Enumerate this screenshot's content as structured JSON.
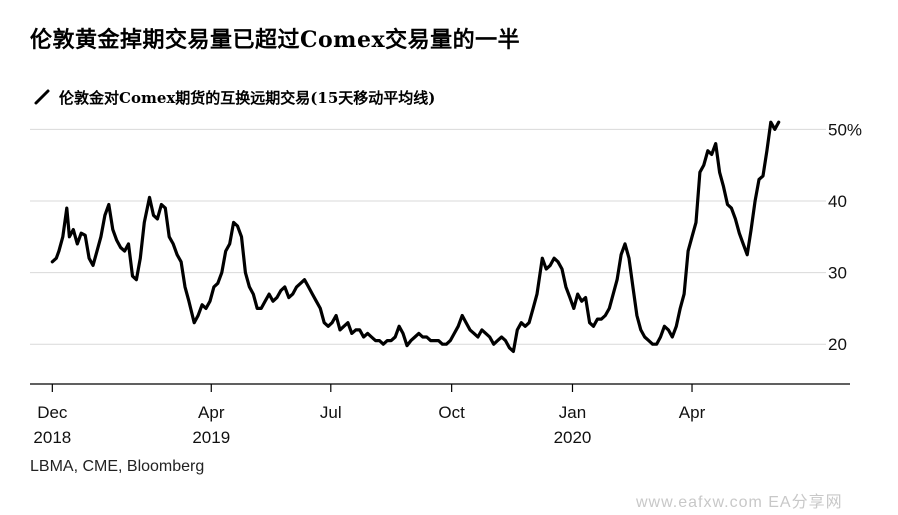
{
  "title": "伦敦黄金掉期交易量已超过Comex交易量的一半",
  "source": "LBMA, CME, Bloomberg",
  "watermark": "www.eafxw.com  EA分享网",
  "chart_data": {
    "type": "line",
    "legend": "伦敦金对Comex期货的互换远期交易(15天移动平均线)",
    "series_color": "#000000",
    "y_unit": "%",
    "ylim": [
      15,
      52
    ],
    "y_ticks": [
      {
        "value": 20,
        "label": "20"
      },
      {
        "value": 30,
        "label": "30"
      },
      {
        "value": 40,
        "label": "40"
      },
      {
        "value": 50,
        "label": "50%"
      }
    ],
    "x_ticks": [
      {
        "date": "2018-12-01",
        "label": "Dec",
        "year": "2018"
      },
      {
        "date": "2019-04-01",
        "label": "Apr",
        "year": "2019"
      },
      {
        "date": "2019-07-01",
        "label": "Jul",
        "year": ""
      },
      {
        "date": "2019-10-01",
        "label": "Oct",
        "year": ""
      },
      {
        "date": "2020-01-01",
        "label": "Jan",
        "year": "2020"
      },
      {
        "date": "2020-04-01",
        "label": "Apr",
        "year": ""
      }
    ],
    "xlim": [
      "2018-11-14",
      "2020-07-12"
    ],
    "points": [
      [
        "2018-12-01",
        31.5
      ],
      [
        "2018-12-04",
        32
      ],
      [
        "2018-12-06",
        33
      ],
      [
        "2018-12-09",
        35
      ],
      [
        "2018-12-12",
        39
      ],
      [
        "2018-12-14",
        35
      ],
      [
        "2018-12-17",
        36
      ],
      [
        "2018-12-20",
        34
      ],
      [
        "2018-12-23",
        35.5
      ],
      [
        "2018-12-26",
        35.2
      ],
      [
        "2018-12-29",
        32
      ],
      [
        "2019-01-01",
        31
      ],
      [
        "2019-01-04",
        33
      ],
      [
        "2019-01-07",
        35
      ],
      [
        "2019-01-10",
        38
      ],
      [
        "2019-01-13",
        39.5
      ],
      [
        "2019-01-16",
        36
      ],
      [
        "2019-01-19",
        34.5
      ],
      [
        "2019-01-22",
        33.5
      ],
      [
        "2019-01-25",
        33
      ],
      [
        "2019-01-28",
        34
      ],
      [
        "2019-01-31",
        29.5
      ],
      [
        "2019-02-03",
        29
      ],
      [
        "2019-02-06",
        32
      ],
      [
        "2019-02-09",
        37
      ],
      [
        "2019-02-13",
        40.5
      ],
      [
        "2019-02-16",
        38
      ],
      [
        "2019-02-19",
        37.5
      ],
      [
        "2019-02-22",
        39.5
      ],
      [
        "2019-02-25",
        39
      ],
      [
        "2019-02-28",
        35
      ],
      [
        "2019-03-03",
        34
      ],
      [
        "2019-03-06",
        32.5
      ],
      [
        "2019-03-09",
        31.5
      ],
      [
        "2019-03-12",
        28
      ],
      [
        "2019-03-15",
        26
      ],
      [
        "2019-03-19",
        23
      ],
      [
        "2019-03-22",
        24
      ],
      [
        "2019-03-25",
        25.5
      ],
      [
        "2019-03-28",
        25
      ],
      [
        "2019-03-31",
        26
      ],
      [
        "2019-04-03",
        28
      ],
      [
        "2019-04-06",
        28.5
      ],
      [
        "2019-04-09",
        30
      ],
      [
        "2019-04-12",
        33
      ],
      [
        "2019-04-15",
        34
      ],
      [
        "2019-04-18",
        37
      ],
      [
        "2019-04-21",
        36.5
      ],
      [
        "2019-04-24",
        35
      ],
      [
        "2019-04-27",
        30
      ],
      [
        "2019-04-30",
        28
      ],
      [
        "2019-05-03",
        27
      ],
      [
        "2019-05-06",
        25
      ],
      [
        "2019-05-09",
        25
      ],
      [
        "2019-05-12",
        26
      ],
      [
        "2019-05-15",
        27
      ],
      [
        "2019-05-18",
        26
      ],
      [
        "2019-05-21",
        26.5
      ],
      [
        "2019-05-24",
        27.5
      ],
      [
        "2019-05-27",
        28
      ],
      [
        "2019-05-30",
        26.5
      ],
      [
        "2019-06-02",
        27
      ],
      [
        "2019-06-05",
        28
      ],
      [
        "2019-06-08",
        28.5
      ],
      [
        "2019-06-11",
        29
      ],
      [
        "2019-06-14",
        28
      ],
      [
        "2019-06-17",
        27
      ],
      [
        "2019-06-20",
        26
      ],
      [
        "2019-06-23",
        25
      ],
      [
        "2019-06-26",
        23
      ],
      [
        "2019-06-29",
        22.5
      ],
      [
        "2019-07-02",
        23
      ],
      [
        "2019-07-05",
        24
      ],
      [
        "2019-07-08",
        22
      ],
      [
        "2019-07-11",
        22.5
      ],
      [
        "2019-07-14",
        23
      ],
      [
        "2019-07-17",
        21.5
      ],
      [
        "2019-07-20",
        22
      ],
      [
        "2019-07-23",
        22
      ],
      [
        "2019-07-26",
        21
      ],
      [
        "2019-07-29",
        21.5
      ],
      [
        "2019-08-01",
        21
      ],
      [
        "2019-08-04",
        20.5
      ],
      [
        "2019-08-07",
        20.5
      ],
      [
        "2019-08-10",
        20
      ],
      [
        "2019-08-13",
        20.5
      ],
      [
        "2019-08-16",
        20.5
      ],
      [
        "2019-08-19",
        21
      ],
      [
        "2019-08-22",
        22.5
      ],
      [
        "2019-08-25",
        21.5
      ],
      [
        "2019-08-28",
        19.8
      ],
      [
        "2019-08-31",
        20.5
      ],
      [
        "2019-09-03",
        21
      ],
      [
        "2019-09-06",
        21.5
      ],
      [
        "2019-09-09",
        21
      ],
      [
        "2019-09-12",
        21
      ],
      [
        "2019-09-15",
        20.5
      ],
      [
        "2019-09-18",
        20.5
      ],
      [
        "2019-09-21",
        20.5
      ],
      [
        "2019-09-24",
        20
      ],
      [
        "2019-09-27",
        20
      ],
      [
        "2019-09-30",
        20.5
      ],
      [
        "2019-10-03",
        21.5
      ],
      [
        "2019-10-06",
        22.5
      ],
      [
        "2019-10-09",
        24
      ],
      [
        "2019-10-12",
        23
      ],
      [
        "2019-10-15",
        22
      ],
      [
        "2019-10-18",
        21.5
      ],
      [
        "2019-10-21",
        21
      ],
      [
        "2019-10-24",
        22
      ],
      [
        "2019-10-27",
        21.5
      ],
      [
        "2019-10-30",
        21
      ],
      [
        "2019-11-02",
        20
      ],
      [
        "2019-11-05",
        20.5
      ],
      [
        "2019-11-08",
        21
      ],
      [
        "2019-11-11",
        20.5
      ],
      [
        "2019-11-14",
        19.5
      ],
      [
        "2019-11-17",
        19
      ],
      [
        "2019-11-20",
        22
      ],
      [
        "2019-11-23",
        23
      ],
      [
        "2019-11-26",
        22.5
      ],
      [
        "2019-11-29",
        23
      ],
      [
        "2019-12-02",
        25
      ],
      [
        "2019-12-05",
        27
      ],
      [
        "2019-12-09",
        32
      ],
      [
        "2019-12-12",
        30.5
      ],
      [
        "2019-12-15",
        31
      ],
      [
        "2019-12-18",
        32
      ],
      [
        "2019-12-21",
        31.5
      ],
      [
        "2019-12-24",
        30.5
      ],
      [
        "2019-12-27",
        28
      ],
      [
        "2019-12-30",
        26.5
      ],
      [
        "2020-01-02",
        25
      ],
      [
        "2020-01-05",
        27
      ],
      [
        "2020-01-08",
        26
      ],
      [
        "2020-01-11",
        26.5
      ],
      [
        "2020-01-14",
        23
      ],
      [
        "2020-01-17",
        22.5
      ],
      [
        "2020-01-20",
        23.5
      ],
      [
        "2020-01-23",
        23.5
      ],
      [
        "2020-01-26",
        24
      ],
      [
        "2020-01-29",
        25
      ],
      [
        "2020-02-01",
        27
      ],
      [
        "2020-02-04",
        29
      ],
      [
        "2020-02-07",
        32.5
      ],
      [
        "2020-02-10",
        34
      ],
      [
        "2020-02-13",
        32
      ],
      [
        "2020-02-16",
        28
      ],
      [
        "2020-02-19",
        24
      ],
      [
        "2020-02-22",
        22
      ],
      [
        "2020-02-25",
        21
      ],
      [
        "2020-02-28",
        20.5
      ],
      [
        "2020-03-02",
        20
      ],
      [
        "2020-03-05",
        20
      ],
      [
        "2020-03-08",
        21
      ],
      [
        "2020-03-11",
        22.5
      ],
      [
        "2020-03-14",
        22
      ],
      [
        "2020-03-17",
        21
      ],
      [
        "2020-03-20",
        22.5
      ],
      [
        "2020-03-23",
        25
      ],
      [
        "2020-03-26",
        27
      ],
      [
        "2020-03-29",
        33
      ],
      [
        "2020-04-01",
        35
      ],
      [
        "2020-04-04",
        37
      ],
      [
        "2020-04-07",
        44
      ],
      [
        "2020-04-10",
        45
      ],
      [
        "2020-04-13",
        47
      ],
      [
        "2020-04-16",
        46.5
      ],
      [
        "2020-04-19",
        48
      ],
      [
        "2020-04-22",
        44
      ],
      [
        "2020-04-25",
        42
      ],
      [
        "2020-04-28",
        39.5
      ],
      [
        "2020-05-01",
        39
      ],
      [
        "2020-05-04",
        37.5
      ],
      [
        "2020-05-07",
        35.5
      ],
      [
        "2020-05-10",
        34
      ],
      [
        "2020-05-13",
        32.5
      ],
      [
        "2020-05-16",
        36
      ],
      [
        "2020-05-19",
        40
      ],
      [
        "2020-05-22",
        43
      ],
      [
        "2020-05-25",
        43.5
      ],
      [
        "2020-05-28",
        47
      ],
      [
        "2020-05-31",
        51
      ],
      [
        "2020-06-03",
        50
      ],
      [
        "2020-06-06",
        51
      ]
    ]
  }
}
